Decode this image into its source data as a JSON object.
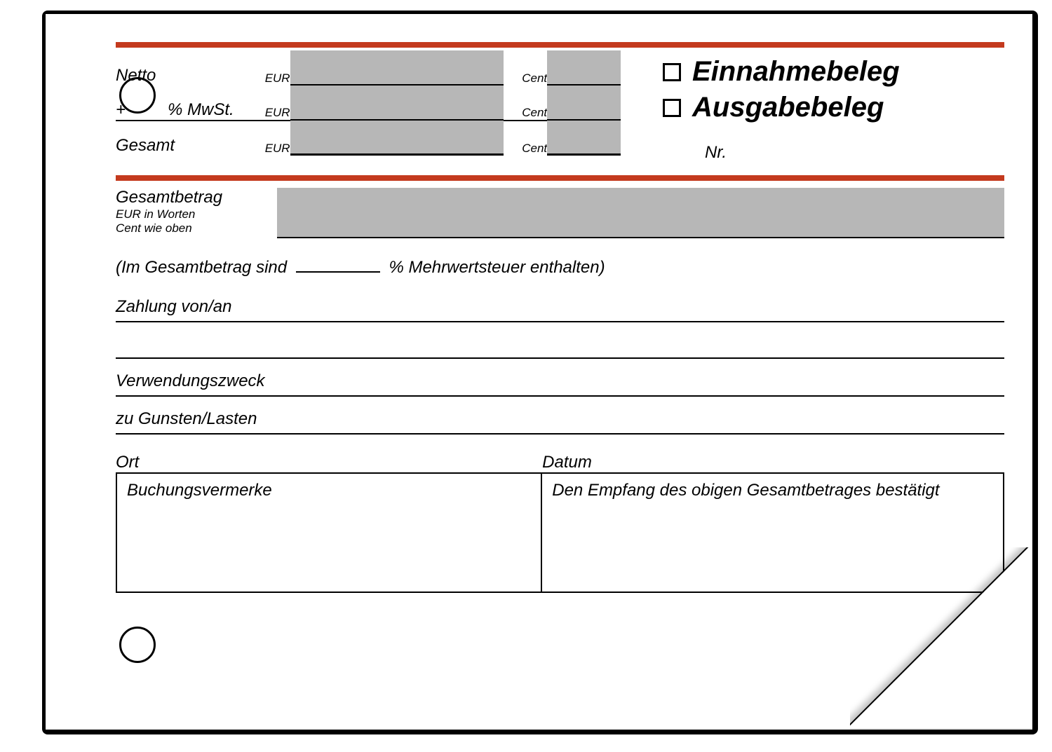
{
  "colors": {
    "red_rule": "#c43a1e",
    "grey_box": "#b7b7b7",
    "fold_yellow": "#f0e46a",
    "line": "#000000",
    "background": "#ffffff"
  },
  "typography": {
    "body_family": "Arial, Helvetica, sans-serif",
    "label_fontsize_pt": 18,
    "small_fontsize_pt": 13,
    "title_fontsize_pt": 30,
    "italic": true
  },
  "header": {
    "receipt_type_income": "Einnahmebeleg",
    "receipt_type_expense": "Ausgabebeleg",
    "number_label": "Nr."
  },
  "amount": {
    "net_label": "Netto",
    "plus_symbol": "+",
    "vat_label": "% MwSt.",
    "total_label": "Gesamt",
    "currency_eur": "EUR",
    "currency_cent": "Cent"
  },
  "words": {
    "title": "Gesamtbetrag",
    "sub1": "EUR in Worten",
    "sub2": "Cent wie oben"
  },
  "vat_sentence": {
    "prefix": "(Im Gesamtbetrag sind",
    "suffix": "% Mehrwertsteuer enthalten)"
  },
  "fields": {
    "payment": "Zahlung von/an",
    "purpose": "Verwendungszweck",
    "favor": "zu Gunsten/Lasten",
    "place": "Ort",
    "date": "Datum",
    "booking": "Buchungsvermerke",
    "confirm": "Den Empfang des obigen Gesamtbetrages bestätigt"
  },
  "layout": {
    "perforation_dots": 32
  }
}
